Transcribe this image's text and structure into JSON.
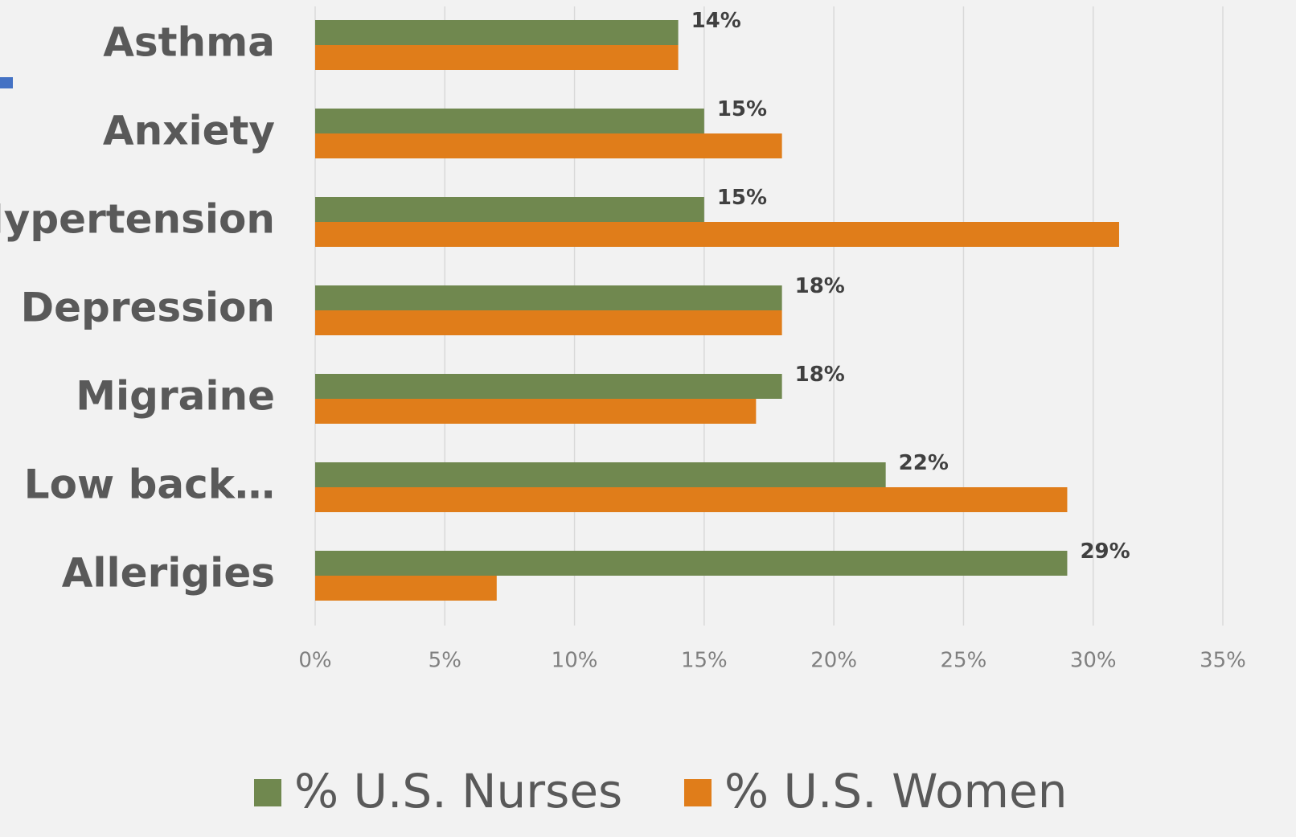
{
  "chart_data": {
    "type": "bar",
    "orientation": "horizontal",
    "categories": [
      "Asthma",
      "Anxiety",
      "Hypertension",
      "Depression",
      "Migraine",
      "Low back…",
      "Allerigies"
    ],
    "series": [
      {
        "name": "% U.S. Nurses",
        "color": "#70884f",
        "values": [
          14,
          15,
          15,
          18,
          18,
          22,
          29
        ],
        "value_labels": [
          "14%",
          "15%",
          "15%",
          "18%",
          "18%",
          "22%",
          "29%"
        ]
      },
      {
        "name": "% U.S. Women",
        "color": "#e07d1a",
        "values": [
          14,
          18,
          31,
          18,
          17,
          29,
          7
        ]
      }
    ],
    "xlim": [
      0,
      35
    ],
    "xticks": [
      {
        "value": 0,
        "label": "0%"
      },
      {
        "value": 5,
        "label": "5%"
      },
      {
        "value": 10,
        "label": "10%"
      },
      {
        "value": 15,
        "label": "15%"
      },
      {
        "value": 20,
        "label": "20%"
      },
      {
        "value": 25,
        "label": "25%"
      },
      {
        "value": 30,
        "label": "30%"
      },
      {
        "value": 35,
        "label": "35%"
      }
    ],
    "grid": true,
    "legend": "bottom"
  }
}
